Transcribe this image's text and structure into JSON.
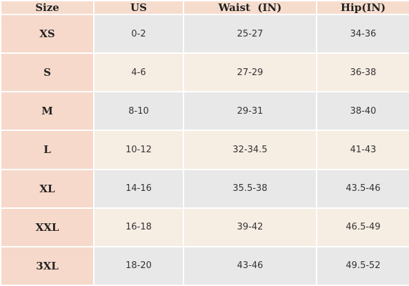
{
  "table": {
    "header": [
      "Size",
      "US",
      "Waist  (IN)",
      "Hip(IN)"
    ],
    "rows": [
      [
        "XS",
        "0-2",
        "25-27",
        "34-36"
      ],
      [
        "S",
        "4-6",
        "27-29",
        "36-38"
      ],
      [
        "M",
        "8-10",
        "29-31",
        "38-40"
      ],
      [
        "L",
        "10-12",
        "32-34.5",
        "41-43"
      ],
      [
        "XL",
        "14-16",
        "35.5-38",
        "43.5-46"
      ],
      [
        "XXL",
        "16-18",
        "39-42",
        "46.5-49"
      ],
      [
        "3XL",
        "18-20",
        "43-46",
        "49.5-52"
      ]
    ]
  }
}
